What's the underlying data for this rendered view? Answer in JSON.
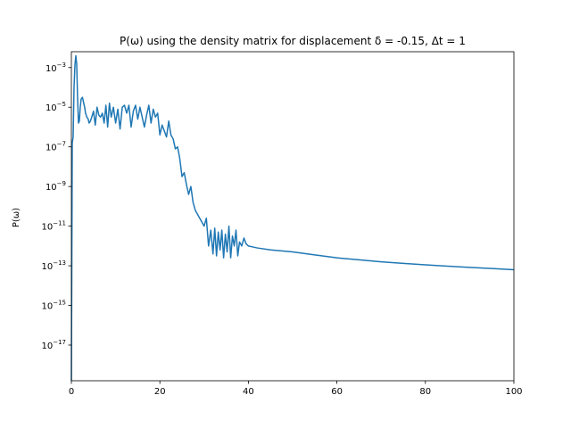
{
  "chart_data": {
    "type": "line",
    "title": "P(ω) using the density matrix for displacement δ = -0.15, Δt = 1",
    "xlabel": "",
    "ylabel": "P(ω)",
    "xlim": [
      0,
      100
    ],
    "ylim_log10": [
      -18.8,
      -2.2
    ],
    "y_scale": "log",
    "grid": false,
    "x_ticks": [
      0,
      20,
      40,
      60,
      80,
      100
    ],
    "x_tick_labels": [
      "0",
      "20",
      "40",
      "60",
      "80",
      "100"
    ],
    "y_ticks_log10": [
      -3,
      -5,
      -7,
      -9,
      -11,
      -13,
      -15,
      -17
    ],
    "y_tick_labels": [
      {
        "base": "10",
        "exp": "−3"
      },
      {
        "base": "10",
        "exp": "−5"
      },
      {
        "base": "10",
        "exp": "−7"
      },
      {
        "base": "10",
        "exp": "−9"
      },
      {
        "base": "10",
        "exp": "−11"
      },
      {
        "base": "10",
        "exp": "−13"
      },
      {
        "base": "10",
        "exp": "−15"
      },
      {
        "base": "10",
        "exp": "−17"
      }
    ],
    "line_color": "#1f77b4",
    "series": [
      {
        "x": [
          0.0,
          0.2,
          0.4,
          0.6,
          0.8,
          1.0,
          1.2,
          1.4,
          1.6,
          1.8,
          2.0,
          2.2,
          2.5,
          2.8,
          3.0,
          3.2,
          3.5,
          3.8,
          4.0,
          4.3,
          4.6,
          5.0,
          5.4,
          5.8,
          6.2,
          6.6,
          7.0,
          7.4,
          7.8,
          8.2,
          8.6,
          9.0,
          9.5,
          10.0,
          10.5,
          11.0,
          11.5,
          12.0,
          12.5,
          13.0,
          13.5,
          14.0,
          14.5,
          15.0,
          15.5,
          16.0,
          16.5,
          17.0,
          17.5,
          18.0,
          18.5,
          19.0,
          19.5,
          20.0,
          20.5,
          21.0,
          21.5,
          22.0,
          22.5,
          23.0,
          23.5,
          24.0,
          24.5,
          25.0,
          25.5,
          26.0,
          26.5,
          27.0,
          27.5,
          28.0,
          28.5,
          29.0,
          29.5,
          30.0,
          30.5,
          31.0,
          31.5,
          32.0,
          32.4,
          32.8,
          33.2,
          33.6,
          34.0,
          34.4,
          34.8,
          35.2,
          35.6,
          36.0,
          36.4,
          36.8,
          37.2,
          37.6,
          38.0,
          38.5,
          39.0,
          39.5,
          40.0,
          41.0,
          42.0,
          45.0,
          50.0,
          55.0,
          60.0,
          65.0,
          70.0,
          75.0,
          80.0,
          85.0,
          90.0,
          95.0,
          100.0
        ],
        "y_log10": [
          -18.8,
          -6.8,
          -6.5,
          -4.0,
          -2.9,
          -2.4,
          -2.8,
          -4.5,
          -5.8,
          -5.7,
          -5.0,
          -4.6,
          -4.5,
          -4.8,
          -5.0,
          -5.3,
          -5.5,
          -5.6,
          -5.8,
          -5.7,
          -5.5,
          -5.2,
          -5.9,
          -5.0,
          -5.4,
          -5.5,
          -5.3,
          -5.8,
          -4.9,
          -6.0,
          -4.8,
          -5.5,
          -5.0,
          -5.8,
          -5.1,
          -6.1,
          -5.0,
          -4.9,
          -5.3,
          -4.9,
          -6.0,
          -5.2,
          -4.9,
          -5.6,
          -5.0,
          -5.5,
          -6.0,
          -5.4,
          -4.9,
          -5.8,
          -5.1,
          -5.5,
          -5.3,
          -6.4,
          -5.9,
          -6.2,
          -6.5,
          -5.7,
          -6.4,
          -6.6,
          -7.1,
          -7.0,
          -7.6,
          -8.5,
          -8.3,
          -8.9,
          -9.4,
          -9.0,
          -9.8,
          -10.2,
          -10.4,
          -10.6,
          -10.8,
          -11.0,
          -10.6,
          -12.0,
          -11.2,
          -12.4,
          -11.1,
          -12.5,
          -11.3,
          -12.2,
          -11.2,
          -12.6,
          -11.4,
          -12.3,
          -11.0,
          -12.6,
          -11.5,
          -12.0,
          -11.2,
          -12.5,
          -11.8,
          -12.0,
          -11.6,
          -11.9,
          -12.0,
          -12.05,
          -12.1,
          -12.2,
          -12.3,
          -12.45,
          -12.6,
          -12.7,
          -12.8,
          -12.88,
          -12.95,
          -13.02,
          -13.08,
          -13.14,
          -13.2
        ]
      }
    ]
  }
}
